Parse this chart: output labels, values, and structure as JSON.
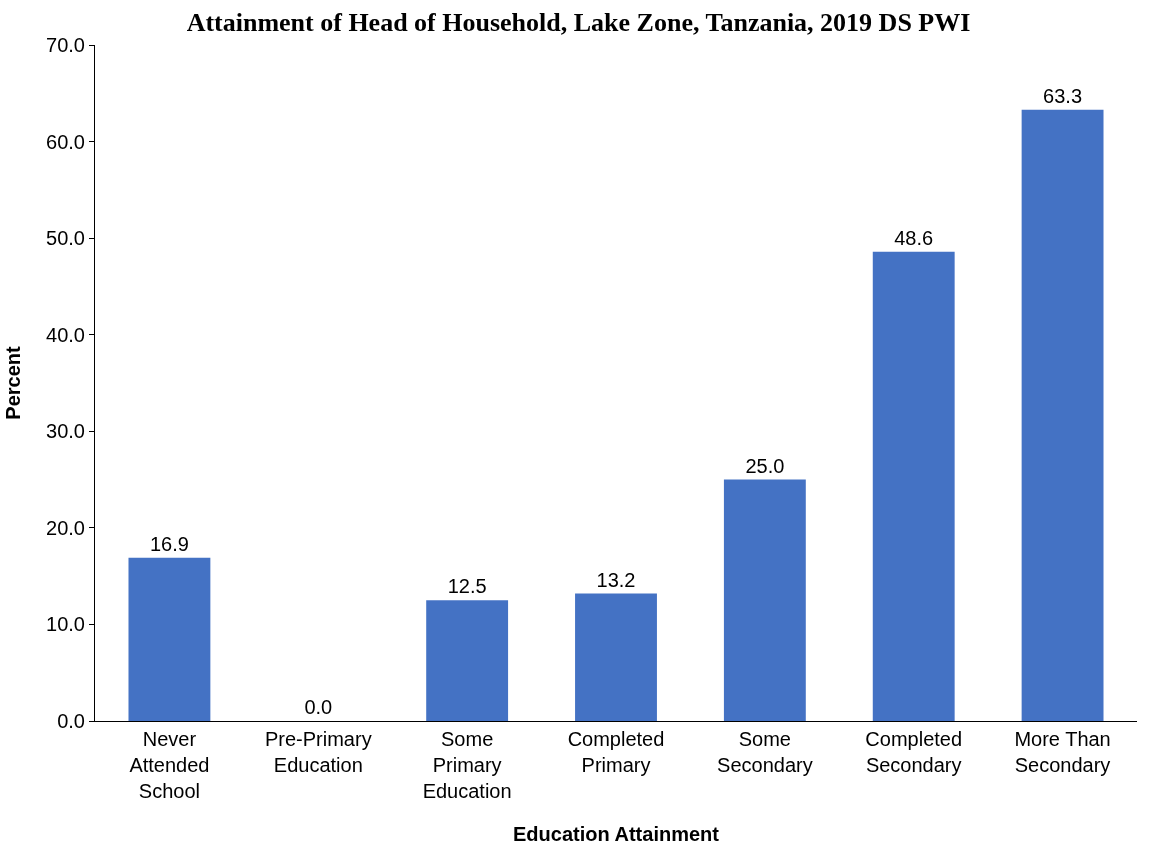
{
  "chart_data": {
    "type": "bar",
    "title": "Attainment of Head of Household, Lake Zone, Tanzania, 2019 DS PWI",
    "xlabel": "Education Attainment",
    "ylabel": "Percent",
    "categories": [
      "Never Attended School",
      "Pre-Primary Education",
      "Some Primary Education",
      "Completed Primary",
      "Some Secondary",
      "Completed Secondary",
      "More Than Secondary"
    ],
    "values": [
      16.9,
      0.0,
      12.5,
      13.2,
      25.0,
      48.6,
      63.3
    ],
    "value_labels": [
      "16.9",
      "0.0",
      "12.5",
      "13.2",
      "25.0",
      "48.6",
      "63.3"
    ],
    "color": "#4472c4",
    "grid": false,
    "legend": false,
    "ylim": [
      0,
      70
    ],
    "yticks": [
      {
        "value": 0,
        "label": "0.0"
      },
      {
        "value": 10,
        "label": "10.0"
      },
      {
        "value": 20,
        "label": "20.0"
      },
      {
        "value": 30,
        "label": "30.0"
      },
      {
        "value": 40,
        "label": "40.0"
      },
      {
        "value": 50,
        "label": "50.0"
      },
      {
        "value": 60,
        "label": "60.0"
      },
      {
        "value": 70,
        "label": "70.0"
      }
    ]
  }
}
